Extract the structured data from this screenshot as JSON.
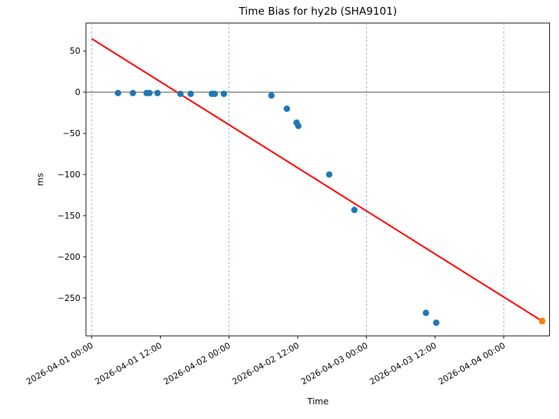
{
  "figure": {
    "title": "Time Bias for hy2b (SHA9101)",
    "xlabel": "Time",
    "ylabel": "ms"
  },
  "chart_data": {
    "type": "scatter",
    "title": "Time Bias for hy2b (SHA9101)",
    "xlabel": "Time",
    "ylabel": "ms",
    "x_axis": {
      "unit": "hours since 2026-04-01 00:00",
      "lim": [
        -1,
        80
      ],
      "ticks": [
        0,
        12,
        24,
        36,
        48,
        60,
        72
      ],
      "tick_labels": [
        "2026-04-01 00:00",
        "2026-04-01 12:00",
        "2026-04-02 00:00",
        "2026-04-02 12:00",
        "2026-04-03 00:00",
        "2026-04-03 12:00",
        "2026-04-04 00:00"
      ],
      "tick_label_rotation_deg": 30,
      "gridlines_at": [
        0,
        24,
        48,
        72
      ],
      "grid_style": "dashed"
    },
    "y_axis": {
      "lim": [
        -296,
        84
      ],
      "ticks": [
        50,
        0,
        -50,
        -100,
        -150,
        -200,
        -250
      ],
      "tick_labels": [
        "50",
        "0",
        "−50",
        "−100",
        "−150",
        "−200",
        "−250"
      ],
      "zero_line": true
    },
    "series": [
      {
        "name": "time-bias-observations",
        "type": "scatter",
        "color": "#1f77b4",
        "marker_radius": 4.6,
        "points": [
          [
            4.6,
            -1
          ],
          [
            7.2,
            -1
          ],
          [
            9.6,
            -1
          ],
          [
            10.1,
            -1
          ],
          [
            11.5,
            -1
          ],
          [
            15.5,
            -2
          ],
          [
            17.3,
            -2
          ],
          [
            21.0,
            -2
          ],
          [
            21.5,
            -2
          ],
          [
            23.1,
            -2
          ],
          [
            31.4,
            -4
          ],
          [
            34.1,
            -20
          ],
          [
            35.8,
            -37
          ],
          [
            36.1,
            -41
          ],
          [
            41.5,
            -100
          ],
          [
            45.9,
            -143
          ],
          [
            58.4,
            -268
          ],
          [
            60.2,
            -280
          ]
        ]
      },
      {
        "name": "predicted-bias-point",
        "type": "scatter",
        "color": "#ff7f0e",
        "marker_radius": 4.8,
        "points": [
          [
            78.7,
            -278
          ]
        ]
      },
      {
        "name": "trend-line",
        "type": "line",
        "color": "#ff0000",
        "line_width": 2.2,
        "points": [
          [
            0,
            65
          ],
          [
            78.7,
            -278
          ]
        ]
      }
    ],
    "colors": {
      "grid": "#69a9d2",
      "zero_line": "#000000",
      "frame": "#000000",
      "tick_text": "#000000"
    },
    "legend": "none",
    "background": "#ffffff"
  }
}
